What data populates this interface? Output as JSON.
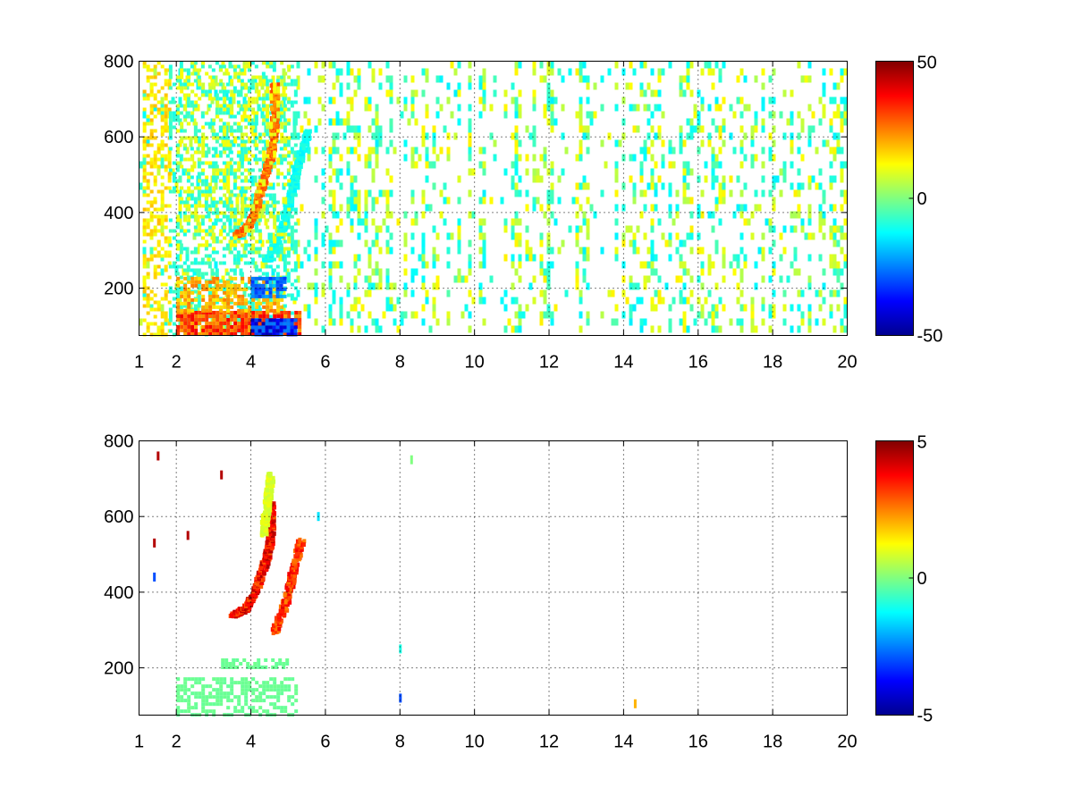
{
  "chart_data": [
    {
      "type": "heatmap",
      "title": "",
      "xlabel": "",
      "ylabel": "",
      "xlim": [
        1,
        20
      ],
      "ylim": [
        75,
        800
      ],
      "xticks": [
        "1",
        "2",
        "4",
        "6",
        "8",
        "10",
        "12",
        "14",
        "16",
        "18",
        "20"
      ],
      "yticks": [
        "200",
        "400",
        "600",
        "800"
      ],
      "grid": true,
      "colormap": "jet",
      "clim": [
        -50,
        50
      ],
      "colorbar_ticks": [
        "50",
        "0",
        "-50"
      ],
      "noise_density": 0.22,
      "features": [
        {
          "kind": "band",
          "x": [
            1.1,
            1.8
          ],
          "y": [
            75,
            800
          ],
          "value": 15,
          "density": 0.45
        },
        {
          "kind": "band",
          "x": [
            1.8,
            5.2
          ],
          "y": [
            75,
            800
          ],
          "value": -8,
          "density": 0.35
        },
        {
          "kind": "band",
          "x": [
            2.0,
            5.3
          ],
          "y": [
            75,
            140
          ],
          "value": 30,
          "density": 0.9
        },
        {
          "kind": "band",
          "x": [
            4.0,
            5.2
          ],
          "y": [
            75,
            120
          ],
          "value": -35,
          "density": 0.9
        },
        {
          "kind": "band",
          "x": [
            2.0,
            4.8
          ],
          "y": [
            140,
            230
          ],
          "value": 20,
          "density": 0.6
        },
        {
          "kind": "band",
          "x": [
            4.0,
            4.9
          ],
          "y": [
            180,
            230
          ],
          "value": -25,
          "density": 0.7
        },
        {
          "kind": "arc",
          "points": [
            [
              3.6,
              345
            ],
            [
              3.9,
              370
            ],
            [
              4.1,
              420
            ],
            [
              4.3,
              490
            ],
            [
              4.5,
              560
            ],
            [
              4.6,
              640
            ],
            [
              4.6,
              740
            ]
          ],
          "value": 28
        },
        {
          "kind": "arc",
          "points": [
            [
              4.4,
              280
            ],
            [
              4.8,
              360
            ],
            [
              5.0,
              440
            ],
            [
              5.2,
              520
            ],
            [
              5.5,
              620
            ]
          ],
          "value": -12
        },
        {
          "kind": "band",
          "x": [
            2.0,
            5.0
          ],
          "y": [
            300,
            800
          ],
          "value": 10,
          "density": 0.25
        }
      ]
    },
    {
      "type": "heatmap",
      "title": "",
      "xlabel": "",
      "ylabel": "",
      "xlim": [
        1,
        20
      ],
      "ylim": [
        75,
        800
      ],
      "xticks": [
        "1",
        "2",
        "4",
        "6",
        "8",
        "10",
        "12",
        "14",
        "16",
        "18",
        "20"
      ],
      "yticks": [
        "200",
        "400",
        "600",
        "800"
      ],
      "grid": true,
      "colormap": "jet",
      "clim": [
        -5,
        5
      ],
      "colorbar_ticks": [
        "5",
        "0",
        "-5"
      ],
      "noise_density": 0,
      "features": [
        {
          "kind": "band",
          "x": [
            2.0,
            5.2
          ],
          "y": [
            80,
            175
          ],
          "value": -0.2,
          "density": 0.55
        },
        {
          "kind": "band",
          "x": [
            3.2,
            5.0
          ],
          "y": [
            205,
            225
          ],
          "value": -0.2,
          "density": 0.6
        },
        {
          "kind": "arc",
          "points": [
            [
              3.5,
              345
            ],
            [
              3.8,
              360
            ],
            [
              4.0,
              390
            ],
            [
              4.2,
              440
            ],
            [
              4.4,
              500
            ],
            [
              4.5,
              560
            ],
            [
              4.5,
              640
            ]
          ],
          "value": 4
        },
        {
          "kind": "arc",
          "points": [
            [
              4.6,
              300
            ],
            [
              4.9,
              380
            ],
            [
              5.1,
              460
            ],
            [
              5.3,
              540
            ]
          ],
          "value": 3.5
        },
        {
          "kind": "arc",
          "points": [
            [
              4.3,
              560
            ],
            [
              4.4,
              640
            ],
            [
              4.5,
              720
            ]
          ],
          "value": 1
        },
        {
          "kind": "point",
          "x": 1.5,
          "y": 760,
          "value": 4.5
        },
        {
          "kind": "point",
          "x": 1.4,
          "y": 530,
          "value": 4.5
        },
        {
          "kind": "point",
          "x": 1.4,
          "y": 440,
          "value": -3
        },
        {
          "kind": "point",
          "x": 2.3,
          "y": 550,
          "value": 4.5
        },
        {
          "kind": "point",
          "x": 3.2,
          "y": 710,
          "value": 4.5
        },
        {
          "kind": "point",
          "x": 5.8,
          "y": 600,
          "value": -1.5
        },
        {
          "kind": "point",
          "x": 8.0,
          "y": 250,
          "value": -1
        },
        {
          "kind": "point",
          "x": 8.0,
          "y": 120,
          "value": -3
        },
        {
          "kind": "point",
          "x": 8.3,
          "y": 750,
          "value": 0
        },
        {
          "kind": "point",
          "x": 14.3,
          "y": 105,
          "value": 2
        }
      ]
    }
  ]
}
